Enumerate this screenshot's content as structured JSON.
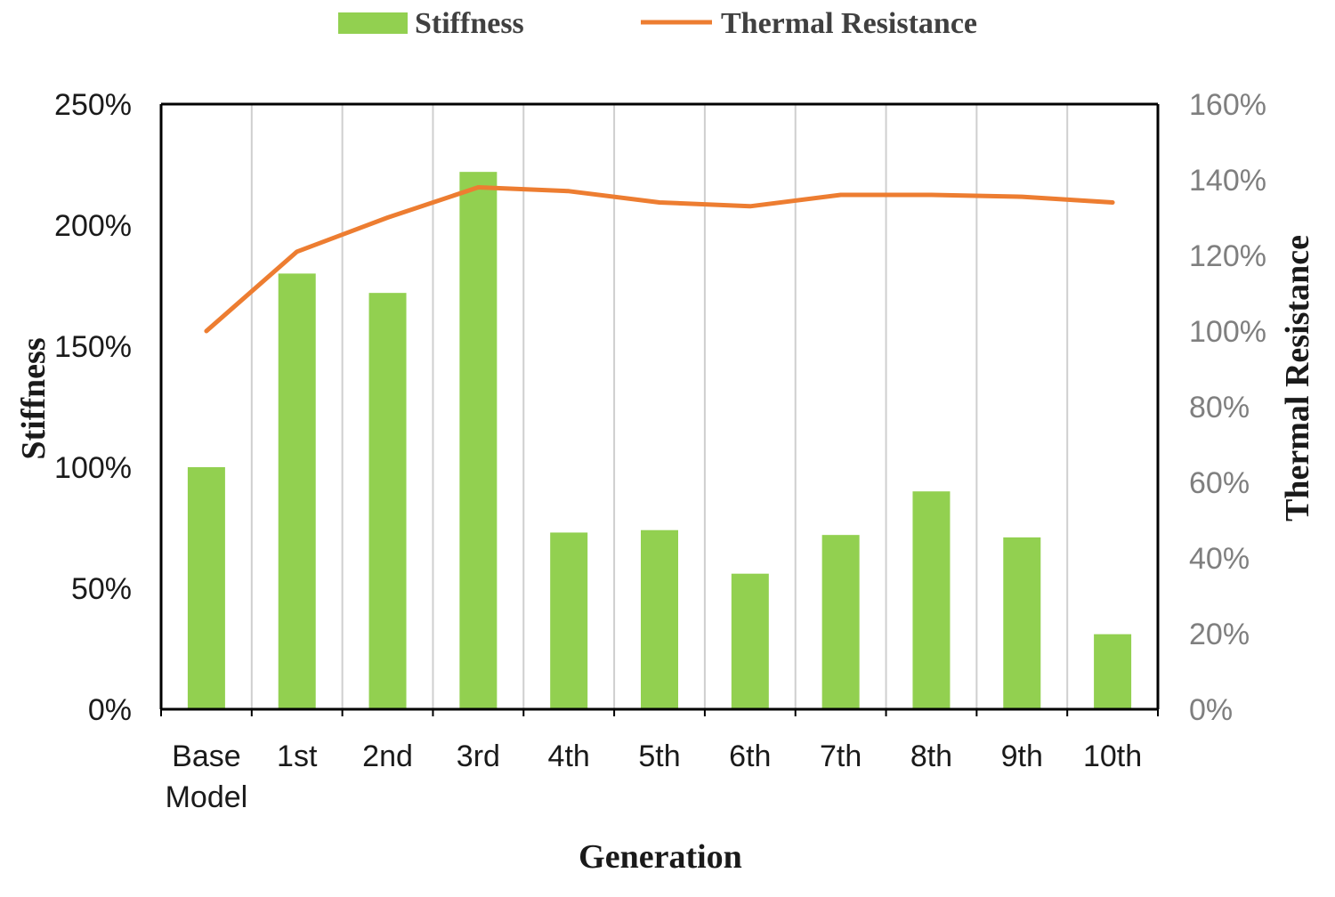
{
  "chart_data": {
    "type": "bar",
    "categories": [
      "Base Model",
      "1st",
      "2nd",
      "3rd",
      "4th",
      "5th",
      "6th",
      "7th",
      "8th",
      "9th",
      "10th"
    ],
    "series": [
      {
        "name": "Stiffness",
        "type": "bar",
        "axis": "left",
        "color": "#92d050",
        "values": [
          100,
          180,
          172,
          222,
          73,
          74,
          56,
          72,
          90,
          71,
          31
        ]
      },
      {
        "name": "Thermal Resistance",
        "type": "line",
        "axis": "right",
        "color": "#ed7d31",
        "values": [
          100,
          121,
          130,
          138,
          137,
          134,
          133,
          136,
          136,
          135.5,
          134
        ]
      }
    ],
    "xlabel": "Generation",
    "ylabel": "Stiffness",
    "y2label": "Thermal Resistance",
    "ylim": [
      0,
      250
    ],
    "y2lim": [
      0,
      160
    ],
    "yticks": [
      "0%",
      "50%",
      "100%",
      "150%",
      "200%",
      "250%"
    ],
    "y2ticks": [
      "0%",
      "20%",
      "40%",
      "60%",
      "80%",
      "100%",
      "120%",
      "140%",
      "160%"
    ],
    "legend": [
      "Stiffness",
      "Thermal Resistance"
    ],
    "legend_position": "top",
    "vertical_gridlines": true
  }
}
